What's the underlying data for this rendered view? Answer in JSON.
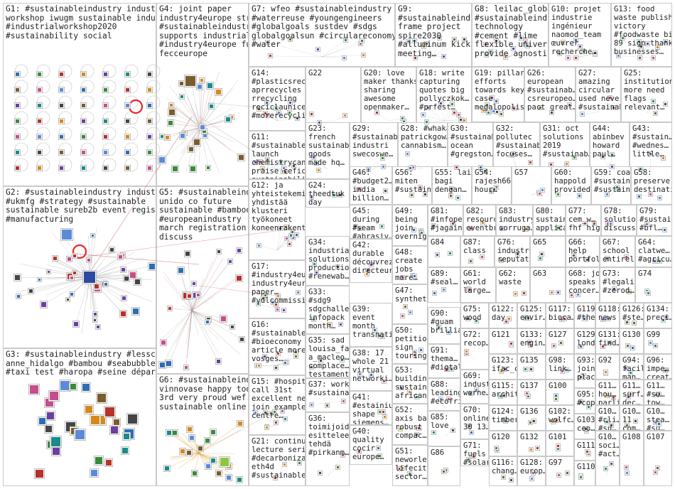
{
  "groups": [
    {
      "id": "G1",
      "text": "G1: #sustainableindustry industrial\nworkshop iwugm sustainable industry\n#industrialworkshop2020\n#sustainability social"
    },
    {
      "id": "G2",
      "text": "G2: #sustainableindustry industry\n#ukmfg #strategy #sustainable\nsustainable sureb2b event register\n#manufacturing"
    },
    {
      "id": "G3",
      "text": "G3: #sustainableindustry #lessco2\nanne_hidalgo #bambou #seabubbles\n#taxi test #haropa #seine départ"
    },
    {
      "id": "G4",
      "text": "G4: joint paper\nindustry4europe strategy\n#sustainableindustry\nsupports industrial\n#industry4europe fully\nfecceurope"
    },
    {
      "id": "G5",
      "text": "G5: #sustainableindustry\nunido co future\nsustainable #bambooeu\n#europeanindustry\nmarch registration\ndiscuss"
    },
    {
      "id": "G6",
      "text": "G6: #sustainableindustry\nvinnovase happy today\n3rd very proud wef\nsustainable online"
    },
    {
      "id": "G7",
      "text": "G7: wfeo #sustainableindustry\n#waterreuse #youngengineers\n#globalgoals sustdev #sdgs\nglobalgoalsun #circulareconomy\n#water"
    },
    {
      "id": "G8",
      "text": "G8: leilac_global\n#sustainableindust…\ntechnology\n#cement #lime\nflexible university\nprovide agnostic…"
    },
    {
      "id": "G9",
      "text": "G9:\n#sustainableindus…\nframe project\nspire2030\n#alluminum kick\nmeeting…"
    },
    {
      "id": "G10",
      "text": "G10: projet\nindustrie\ningénieur\nnaomod_team\nœuvrer\nrecherche…"
    },
    {
      "id": "G11",
      "text": "G11:\n#sustainablei…\nlaunch\nchemistrycan\npraise cefic's\nsustainability…"
    },
    {
      "id": "G12",
      "text": "G12: ja\nyhteistekemis…\nyhdistää\nklusteri\ntyökoneet\nkoneenrakent…"
    },
    {
      "id": "G13",
      "text": "G13: food\nwaste publish\nvictory\n#foodwaste big\n89 sign thanks\nbusinesses…"
    },
    {
      "id": "G14",
      "text": "G14:\n#plasticsrecy…\naprrecycles\nrrecycling\nreciclaunicel\n#morerecycli…"
    },
    {
      "id": "G15",
      "text": "G15: #hospital\ncall 31st\nexcellent next\njoin example\ncentre…"
    },
    {
      "id": "G16",
      "text": "G16:\n#sustainablei…\n#bioeconomy\narticle more\nvosges…"
    },
    {
      "id": "G17",
      "text": "G17:\n#industry4eur…\nindustry4euro…\npaper…\n#vdlcommissi…"
    },
    {
      "id": "G18",
      "text": "G18: write\ncapturing\nquotes big\npollyczkok…\n#prfest…"
    },
    {
      "id": "G19",
      "text": "G19: pillars\nefforts\ntowards key\ncase\nmegalopolis…"
    },
    {
      "id": "G20",
      "text": "G20: love\nmaker thanks\nsharing\nawesome\nopenmaker…"
    },
    {
      "id": "G21",
      "text": "G21: continue\nlecture series\n#decarboniza…\neth4d\n#sustainablei…"
    },
    {
      "id": "G22",
      "text": "G22"
    },
    {
      "id": "G23",
      "text": "G23:\nfrench\nsustainable\ngoods\nmade hq…"
    },
    {
      "id": "G24",
      "text": "G24:\ntheedtuk\nday"
    },
    {
      "id": "G25",
      "text": "G25:\ninstitutions\nmore need\nflags\nrelevant…"
    },
    {
      "id": "G26",
      "text": "G26:\neuropean\n#sustainab…\ncsreuropeo…\npact great…"
    },
    {
      "id": "G27",
      "text": "G27:\namazing\ncircular\nused never\n#sustainab…"
    },
    {
      "id": "G28",
      "text": "G28: #whakama…\npatrickgow…\ncannabism…"
    },
    {
      "id": "G29",
      "text": "G29:\n#sustainab…\nindustri\nswecoswe…"
    },
    {
      "id": "G30",
      "text": "G30:\n#sustainab…\nocean\n#gregston…"
    },
    {
      "id": "G31",
      "text": "G31: oct\nsolutions\n2019\n#sustainab…"
    },
    {
      "id": "G32",
      "text": "G32:\npollutec\n#sustainab…\nfocuses…"
    },
    {
      "id": "G33",
      "text": "G33:\n#sdg9\nsdgchalle…\ninfopack\nmonth…"
    },
    {
      "id": "G34",
      "text": "G34:\nindustrial\nsolutions\nproduction\n#renewab…"
    },
    {
      "id": "G35",
      "text": "G35: sad\nlouisa_faux…\na_macleo…\ncomplace…\ntestament…"
    },
    {
      "id": "G36",
      "text": "G36:\ntoimijoiden\nesittelee\ntehdä\n#pirkanm…"
    },
    {
      "id": "G37",
      "text": "G37: work\n#sustaina…"
    },
    {
      "id": "G38",
      "text": "G38: 17\nwhole 21\nvirtual\nnetworki…"
    },
    {
      "id": "G39",
      "text": "G39:\nevent\nmonth\ntransnati…"
    },
    {
      "id": "G40",
      "text": "G40:\nquality\ncocir\neurope…"
    },
    {
      "id": "G41",
      "text": "G41:\n#estainiu…\nshape\nsiemens…"
    },
    {
      "id": "G42",
      "text": "G42:\ndurable\ndécouvrez\ndirecteur…"
    },
    {
      "id": "G43",
      "text": "G43:\n#sustain…\n#wednes…\nlittle…"
    },
    {
      "id": "G44",
      "text": "G44:\nabinbev\nhoward\npaul…"
    },
    {
      "id": "G45",
      "text": "G45:\nduring\n#seam\n#abrasiv…"
    },
    {
      "id": "G46",
      "text": "G46:\n#budget2…\nindia\nbillion…"
    },
    {
      "id": "G47",
      "text": "G47:\nsynthetic"
    },
    {
      "id": "G48",
      "text": "G48:\ncreate\njobs\nmore…"
    },
    {
      "id": "G49",
      "text": "G49:\nbeing\njoin\novernig…"
    },
    {
      "id": "G50",
      "text": "G50:\npetition\nsign\ntouring…"
    },
    {
      "id": "G51",
      "text": "G51:\nneworle…\nlifecity\nsector…"
    },
    {
      "id": "G52",
      "text": "G52:\naxis back\nrobust\ncompac…"
    },
    {
      "id": "G53",
      "text": "G53:\nbuilding\nsustain…\nafrican…"
    },
    {
      "id": "G54",
      "text": "G54:\nrajesh664\nhour…"
    },
    {
      "id": "G55",
      "text": "G55: lain\nbagi\ndengan…"
    },
    {
      "id": "G56",
      "text": "G56:\nmiten\n#sustain…"
    },
    {
      "id": "G57",
      "text": "G57"
    },
    {
      "id": "G58",
      "text": "G58:\npreserve\ndestinati…"
    },
    {
      "id": "G59",
      "text": "G59: coal\n#sustain…\n#sustain…"
    },
    {
      "id": "G60",
      "text": "G60:\nhappold\nprovided…"
    },
    {
      "id": "G61",
      "text": "G61:\nworld\nlarge…"
    },
    {
      "id": "G62",
      "text": "G62:\nwaste"
    },
    {
      "id": "G63",
      "text": "G63"
    },
    {
      "id": "G64",
      "text": "G64:\nclatwe…\n#agricu…"
    },
    {
      "id": "G65",
      "text": "G65"
    },
    {
      "id": "G66",
      "text": "G66:\nhelp\nportfoli…"
    },
    {
      "id": "G67",
      "text": "G67:\nschool\nentirely…"
    },
    {
      "id": "G68",
      "text": "G68: jon\nspeaks\nconcer…"
    },
    {
      "id": "G69",
      "text": "G69:\nindust…\nwerne…"
    },
    {
      "id": "G70",
      "text": "G70:\nonline\n30 13…"
    },
    {
      "id": "G71",
      "text": "G71:\nfuels\n#solar…"
    },
    {
      "id": "G72",
      "text": "G72:\nrecop…"
    },
    {
      "id": "G73",
      "text": "G73:\n#legalis…\n#zerod…"
    },
    {
      "id": "G74",
      "text": "G74"
    },
    {
      "id": "G75",
      "text": "G75:\nwood"
    },
    {
      "id": "G76",
      "text": "G76:\nindustry\nreputati…"
    },
    {
      "id": "G77",
      "text": "G77:\ncem_w…\nfhf high…"
    },
    {
      "id": "G78",
      "text": "G78:\nsolutions\ndiscuss…"
    },
    {
      "id": "G79",
      "text": "G79:\n#sustai…\n#bfl…"
    },
    {
      "id": "G80",
      "text": "G80:\nsustain…\napplica…"
    },
    {
      "id": "G81",
      "text": "G81:\n#infope…\n#jagain…"
    },
    {
      "id": "G82",
      "text": "G82:\nresourc…\neventbr…"
    },
    {
      "id": "G83",
      "text": "G83:\nindustry\ncorruga…"
    },
    {
      "id": "G84",
      "text": "G84"
    },
    {
      "id": "G85",
      "text": "G85:\nlove"
    },
    {
      "id": "G86",
      "text": "G86"
    },
    {
      "id": "G87",
      "text": "G87:\nclass"
    },
    {
      "id": "G88",
      "text": "G88:\nleading\n#ecofri…"
    },
    {
      "id": "G89",
      "text": "G89:\n#seal…"
    },
    {
      "id": "G90",
      "text": "G90:\n#guam\nbrillian…"
    },
    {
      "id": "G91",
      "text": "G91:\nthema…\n#digtal…"
    },
    {
      "id": "G92",
      "text": "G92"
    },
    {
      "id": "G93",
      "text": "G93:\njoin\nplac…"
    },
    {
      "id": "G94",
      "text": "G94:\nfacility\nman…"
    },
    {
      "id": "G95",
      "text": "G95:\n#cop2…"
    },
    {
      "id": "G96",
      "text": "G96:\nimpe…\ncreat…"
    },
    {
      "id": "G97",
      "text": "G97"
    },
    {
      "id": "G98",
      "text": "G98:\nlink…"
    },
    {
      "id": "G99",
      "text": "G99"
    },
    {
      "id": "G100",
      "text": "G100"
    },
    {
      "id": "G101",
      "text": "G101"
    },
    {
      "id": "G102",
      "text": "G102:\nwolfc…"
    },
    {
      "id": "G103",
      "text": "G103:\nceo…"
    },
    {
      "id": "G104",
      "text": "G10…\nsoci…\n#act…"
    },
    {
      "id": "G105",
      "text": "G10…\n#cli…\n#su…"
    },
    {
      "id": "G106",
      "text": "G10…\n11\ncom…"
    },
    {
      "id": "G107",
      "text": "G107"
    },
    {
      "id": "G108",
      "text": "G108"
    },
    {
      "id": "G109",
      "text": "G10…\nstea…\n#su…"
    },
    {
      "id": "G110",
      "text": "G110"
    },
    {
      "id": "G111",
      "text": "G111"
    },
    {
      "id": "G112",
      "text": "G11…\nhou…\nparli…"
    },
    {
      "id": "G113",
      "text": "G11…\nsurf…\ndec…"
    },
    {
      "id": "G114",
      "text": "G11…\n#su…\ntow…"
    },
    {
      "id": "G115",
      "text": "G115:\narchit…"
    },
    {
      "id": "G116",
      "text": "G116:\nchang…"
    },
    {
      "id": "G117",
      "text": "G117:\nbioca…"
    },
    {
      "id": "G118",
      "text": "G118:\nnews"
    },
    {
      "id": "G119",
      "text": "G119:\n#the…"
    },
    {
      "id": "G120",
      "text": "G120"
    },
    {
      "id": "G121",
      "text": "G121"
    },
    {
      "id": "G122",
      "text": "G122:\nday"
    },
    {
      "id": "G123",
      "text": "G123:\nifac_c…"
    },
    {
      "id": "G124",
      "text": "G124:\ntimber"
    },
    {
      "id": "G125",
      "text": "G125:\nenvir…"
    },
    {
      "id": "G126",
      "text": "G126:\n#ste…"
    },
    {
      "id": "G127",
      "text": "G127"
    },
    {
      "id": "G128",
      "text": "G128:\neurop…"
    },
    {
      "id": "G129",
      "text": "G129:\nlond…"
    },
    {
      "id": "G130",
      "text": "G130"
    },
    {
      "id": "G131",
      "text": "G131:\nfind…"
    },
    {
      "id": "G132",
      "text": "G132"
    },
    {
      "id": "G133",
      "text": "G133:\nengin…"
    },
    {
      "id": "G134",
      "text": "G134:\npreci…"
    },
    {
      "id": "G135",
      "text": "G135"
    },
    {
      "id": "G136",
      "text": "G136"
    },
    {
      "id": "G137",
      "text": "G137"
    }
  ],
  "colors": {
    "cell_border": "#c9c9c9",
    "edge_dark": "#8a8a8a",
    "edge_red": "#c0504d",
    "highlight_red": "#e8262a"
  }
}
